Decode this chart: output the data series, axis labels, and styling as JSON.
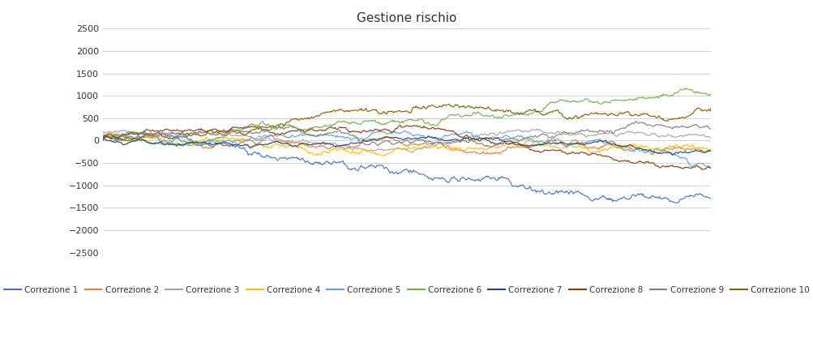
{
  "title": "Gestione rischio",
  "title_fontsize": 11,
  "background_color": "#ffffff",
  "plot_bg_color": "#ffffff",
  "grid_color": "#cccccc",
  "text_color": "#333333",
  "ylim": [
    -2500,
    2500
  ],
  "yticks": [
    -2500,
    -2000,
    -1500,
    -1000,
    -500,
    0,
    500,
    1000,
    1500,
    2000,
    2500
  ],
  "series_colors": [
    "#4472C4",
    "#ED7D31",
    "#A5A5A5",
    "#FFC000",
    "#5BA3D9",
    "#70AD47",
    "#264478",
    "#843C0C",
    "#7F7F7F",
    "#806000"
  ],
  "series_labels": [
    "Correzione 1",
    "Correzione 2",
    "Correzione 3",
    "Correzione 4",
    "Correzione 5",
    "Correzione 6",
    "Correzione 7",
    "Correzione 8",
    "Correzione 9",
    "Correzione 10"
  ],
  "n_points": 700,
  "line_width": 0.8,
  "legend_fontsize": 7.5
}
